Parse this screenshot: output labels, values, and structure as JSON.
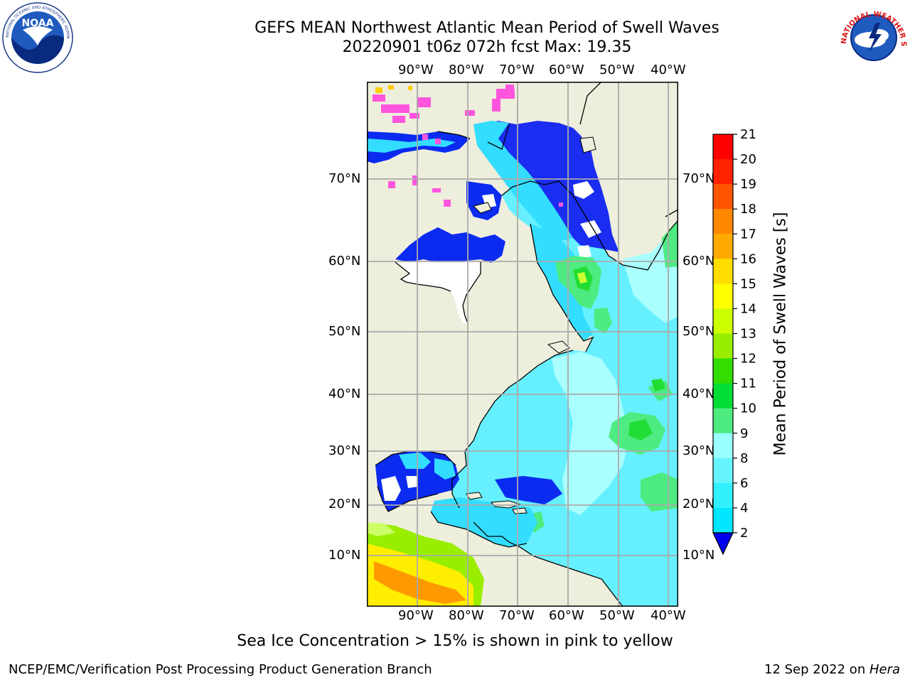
{
  "header": {
    "title": "GEFS MEAN Northwest Atlantic Mean Period of Swell Waves",
    "subtitle": "20220901 t06z 072h fcst   Max: 19.35"
  },
  "logos": {
    "left": "NOAA",
    "left_ring_text": "NATIONAL OCEANIC AND ATMOSPHERIC ADMINISTRATION · U.S. DEPARTMENT OF COMMERCE",
    "right_ring_text": "NATIONAL WEATHER SERVICE"
  },
  "map": {
    "lon_labels": [
      "90°W",
      "80°W",
      "70°W",
      "60°W",
      "50°W",
      "40°W"
    ],
    "lat_labels": [
      "70°N",
      "60°N",
      "50°N",
      "40°N",
      "30°N",
      "20°N",
      "10°N"
    ]
  },
  "colorbar": {
    "label": "Mean Period of Swell Waves [s]",
    "ticks": [
      "2",
      "4",
      "6",
      "8",
      "9",
      "10",
      "11",
      "12",
      "13",
      "14",
      "15",
      "16",
      "17",
      "18",
      "19",
      "20",
      "21"
    ],
    "colors": [
      "#0a55ff",
      "#00e6ff",
      "#33f0ff",
      "#66f5ff",
      "#99ffff",
      "#4deb80",
      "#00dd33",
      "#33dd00",
      "#99ee00",
      "#ccff00",
      "#ffff00",
      "#ffdd00",
      "#ffaa00",
      "#ff8800",
      "#ff5500",
      "#ff2200",
      "#ff0000"
    ],
    "extend_color": "#0000ee",
    "ocean_colors": {
      "low": "#0b2bf0",
      "mid": "#33ecff",
      "typical": "#66f0ff",
      "pale": "#aaffff",
      "green": "#4deb80",
      "land": "#eeeedd",
      "ice": "#ff55dd"
    }
  },
  "footer": {
    "note": "Sea Ice Concentration > 15% is shown in pink to yellow",
    "left": "NCEP/EMC/Verification Post Processing Product Generation Branch",
    "right_prefix": "12 Sep 2022 on ",
    "right_host": "Hera"
  }
}
